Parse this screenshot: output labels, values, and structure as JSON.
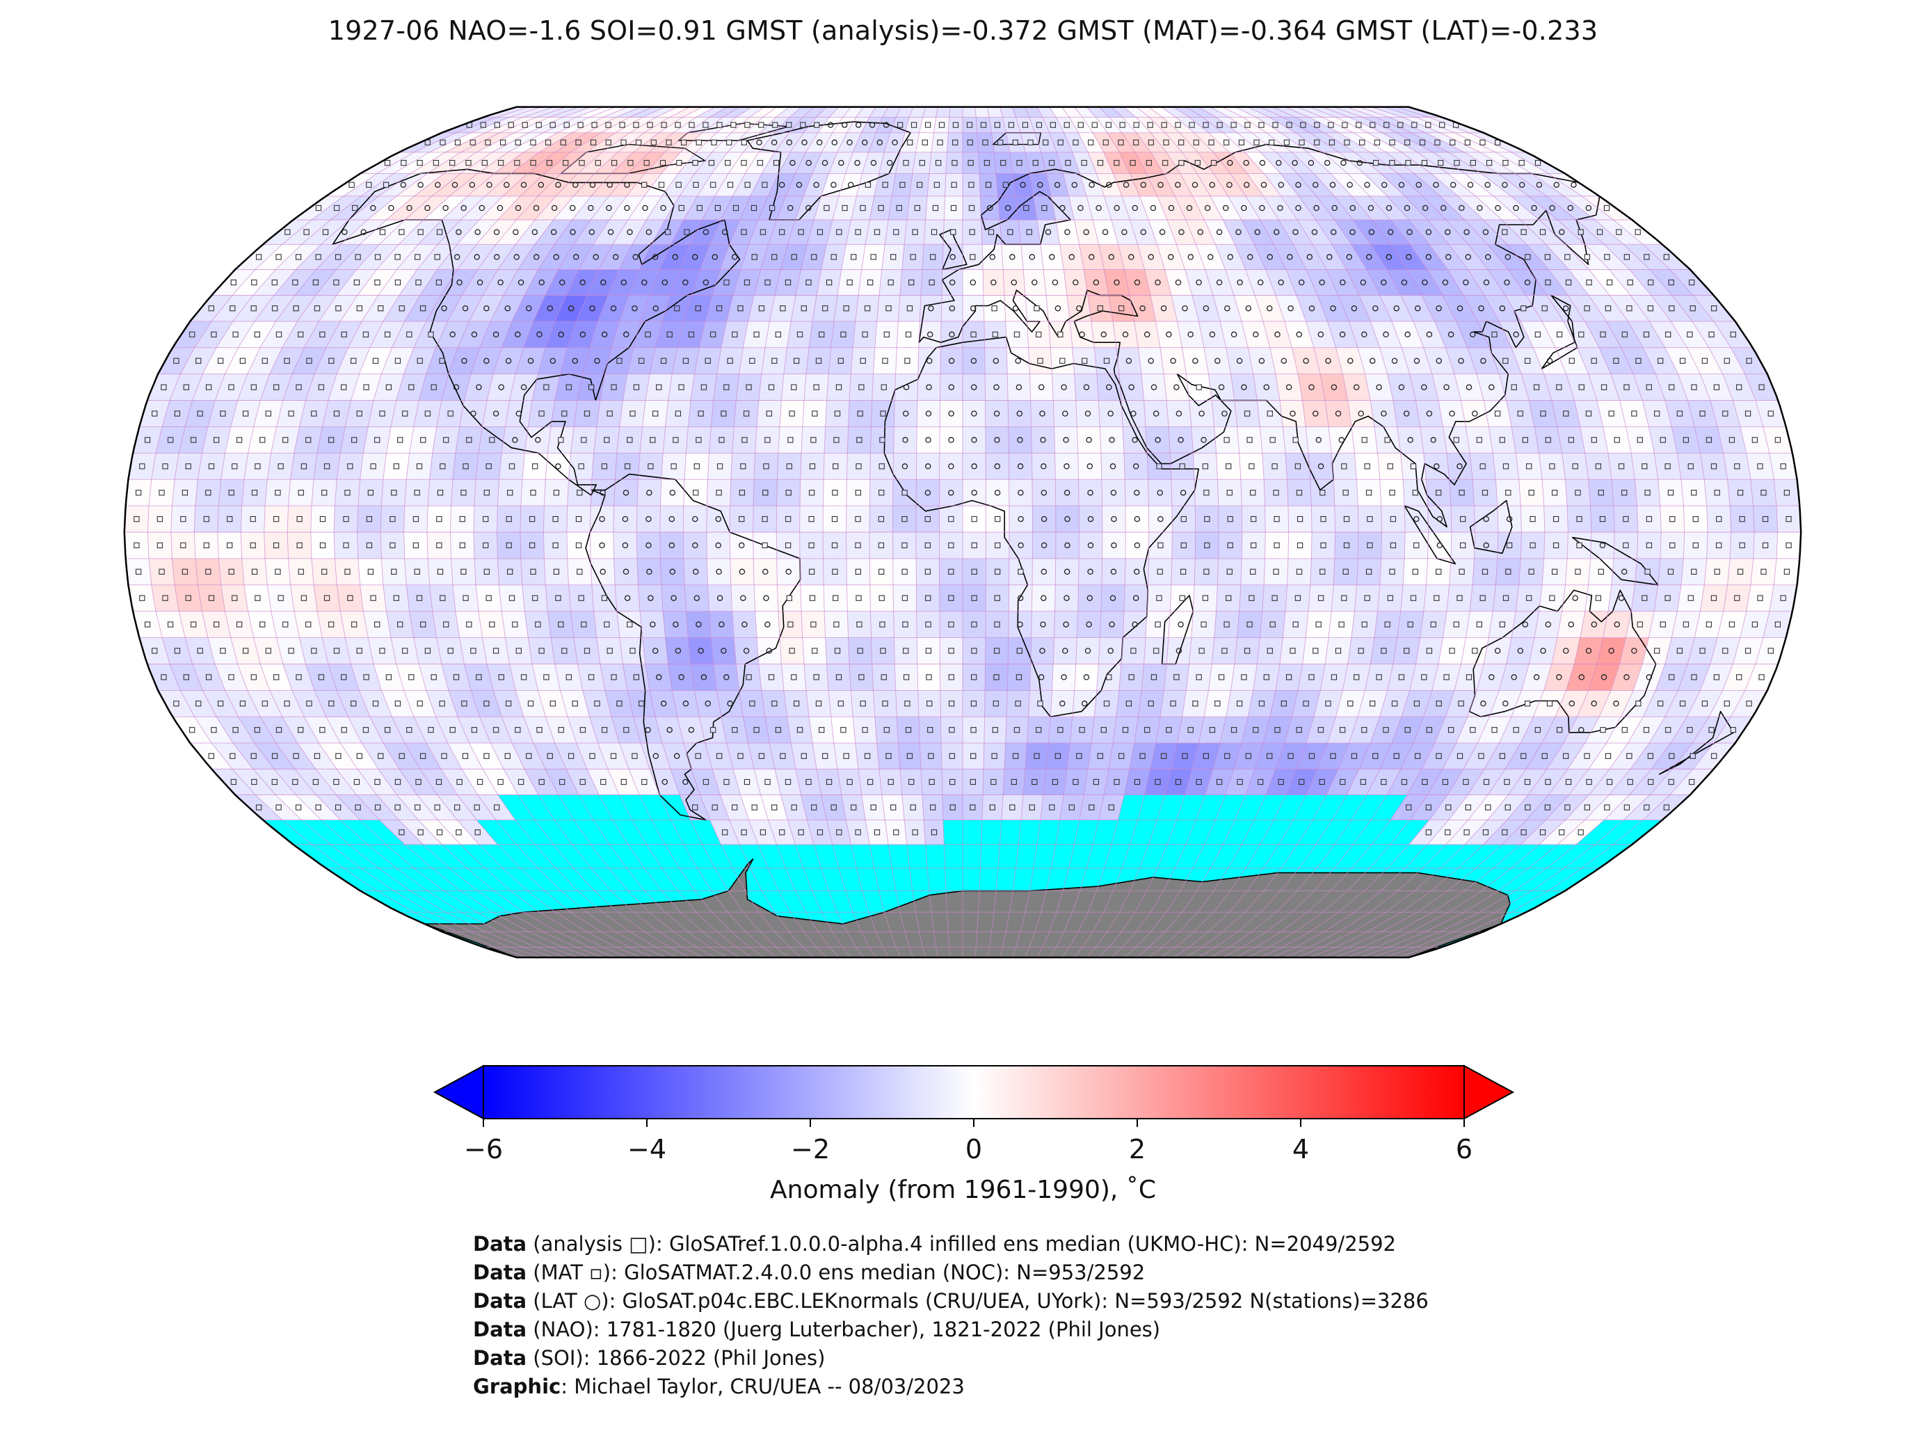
{
  "title": "1927-06 NAO=-1.6 SOI=0.91 GMST (analysis)=-0.372 GMST (MAT)=-0.364 GMST (LAT)=-0.233",
  "colorbar": {
    "label": "Anomaly (from 1961-1990), ˚C",
    "min": -6,
    "max": 6,
    "extend": "both",
    "ticks": [
      "−6",
      "−4",
      "−2",
      "0",
      "2",
      "4",
      "6"
    ],
    "colors": {
      "neg": "#0000ff",
      "mid": "#ffffff",
      "pos": "#ff0000"
    }
  },
  "map": {
    "projection": "Robinson",
    "ocean_sea_ice_color": "#00ffff",
    "land_ice_color": "#808080",
    "grid_color": "#cc88cc",
    "grid_resolution_deg": 5
  },
  "credits": [
    {
      "bold": "Data",
      "text": " (analysis □): GloSATref.1.0.0.0-alpha.4 infilled ens median (UKMO-HC): N=2049/2592"
    },
    {
      "bold": "Data",
      "text": " (MAT ▫): GloSATMAT.2.4.0.0 ens median (NOC): N=953/2592"
    },
    {
      "bold": "Data",
      "text": " (LAT ○): GloSAT.p04c.EBC.LEKnormals (CRU/UEA, UYork): N=593/2592 N(stations)=3286"
    },
    {
      "bold": "Data",
      "text": " (NAO): 1781-1820 (Juerg Luterbacher), 1821-2022 (Phil Jones)"
    },
    {
      "bold": "Data",
      "text": " (SOI): 1866-2022 (Phil Jones)"
    },
    {
      "bold": "Graphic",
      "text": ": Michael Taylor, CRU/UEA -- 08/03/2023"
    }
  ]
}
